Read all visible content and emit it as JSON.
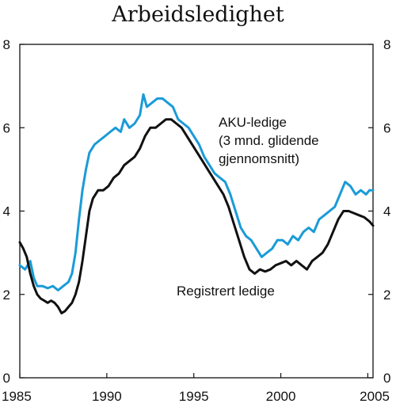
{
  "chart_data": {
    "type": "line",
    "title": "Arbeidsledighet",
    "xlim": [
      1985,
      2005.3
    ],
    "ylim": [
      0,
      8
    ],
    "x_ticks": [
      {
        "value": 1985,
        "label": "1985"
      },
      {
        "value": 1990,
        "label": "1990"
      },
      {
        "value": 1995,
        "label": "1995"
      },
      {
        "value": 2000,
        "label": "2000"
      },
      {
        "value": 2005,
        "label": "2005"
      }
    ],
    "y_ticks": [
      {
        "value": 0,
        "label": "0"
      },
      {
        "value": 2,
        "label": "2"
      },
      {
        "value": 4,
        "label": "4"
      },
      {
        "value": 6,
        "label": "6"
      },
      {
        "value": 8,
        "label": "8"
      }
    ],
    "grid": false,
    "annotations": [
      {
        "text": "AKU-ledige",
        "series": "AKU-ledige (3 mnd. glidende gjennomsnitt)"
      },
      {
        "text": "(3 mnd. glidende",
        "series": "AKU-ledige (3 mnd. glidende gjennomsnitt)"
      },
      {
        "text": "gjennomsnitt)",
        "series": "AKU-ledige (3 mnd. glidende gjennomsnitt)"
      },
      {
        "text": "Registrert ledige",
        "series": "Registrert ledige"
      }
    ],
    "series": [
      {
        "name": "AKU-ledige (3 mnd. glidende gjennomsnitt)",
        "color": "#1a9bd7",
        "x": [
          1985.0,
          1985.3,
          1985.6,
          1985.8,
          1986.0,
          1986.3,
          1986.6,
          1986.9,
          1987.2,
          1987.5,
          1987.8,
          1988.0,
          1988.2,
          1988.4,
          1988.6,
          1988.8,
          1989.0,
          1989.3,
          1989.6,
          1989.9,
          1990.2,
          1990.5,
          1990.8,
          1991.0,
          1991.3,
          1991.6,
          1991.9,
          1992.1,
          1992.3,
          1992.6,
          1992.9,
          1993.2,
          1993.5,
          1993.8,
          1994.1,
          1994.4,
          1994.7,
          1995.0,
          1995.3,
          1995.6,
          1995.9,
          1996.2,
          1996.5,
          1996.8,
          1997.1,
          1997.4,
          1997.7,
          1998.0,
          1998.3,
          1998.6,
          1998.9,
          1999.2,
          1999.5,
          1999.8,
          2000.1,
          2000.4,
          2000.7,
          2001.0,
          2001.3,
          2001.6,
          2001.9,
          2002.2,
          2002.5,
          2002.8,
          2003.1,
          2003.4,
          2003.7,
          2004.0,
          2004.3,
          2004.6,
          2004.9,
          2005.1,
          2005.3
        ],
        "y": [
          2.7,
          2.6,
          2.8,
          2.4,
          2.2,
          2.2,
          2.15,
          2.2,
          2.1,
          2.2,
          2.3,
          2.5,
          3.0,
          3.8,
          4.5,
          5.0,
          5.4,
          5.6,
          5.7,
          5.8,
          5.9,
          6.0,
          5.9,
          6.2,
          6.0,
          6.1,
          6.3,
          6.8,
          6.5,
          6.6,
          6.7,
          6.7,
          6.6,
          6.5,
          6.2,
          6.1,
          6.0,
          5.8,
          5.6,
          5.3,
          5.1,
          4.9,
          4.8,
          4.7,
          4.4,
          4.0,
          3.6,
          3.4,
          3.3,
          3.1,
          2.9,
          3.0,
          3.1,
          3.3,
          3.3,
          3.2,
          3.4,
          3.3,
          3.5,
          3.6,
          3.5,
          3.8,
          3.9,
          4.0,
          4.1,
          4.4,
          4.7,
          4.6,
          4.4,
          4.5,
          4.4,
          4.5,
          4.5
        ]
      },
      {
        "name": "Registrert ledige",
        "color": "#111111",
        "x": [
          1985.0,
          1985.2,
          1985.4,
          1985.6,
          1985.8,
          1986.0,
          1986.2,
          1986.4,
          1986.6,
          1986.8,
          1987.0,
          1987.2,
          1987.4,
          1987.6,
          1987.8,
          1988.0,
          1988.2,
          1988.4,
          1988.6,
          1988.8,
          1989.0,
          1989.2,
          1989.5,
          1989.8,
          1990.1,
          1990.4,
          1990.7,
          1991.0,
          1991.3,
          1991.6,
          1991.9,
          1992.2,
          1992.5,
          1992.8,
          1993.1,
          1993.4,
          1993.7,
          1994.0,
          1994.3,
          1994.6,
          1994.9,
          1995.2,
          1995.5,
          1995.8,
          1996.1,
          1996.4,
          1996.7,
          1997.0,
          1997.3,
          1997.6,
          1997.9,
          1998.2,
          1998.5,
          1998.8,
          1999.1,
          1999.4,
          1999.7,
          2000.0,
          2000.3,
          2000.6,
          2000.9,
          2001.2,
          2001.5,
          2001.8,
          2002.1,
          2002.4,
          2002.7,
          2003.0,
          2003.3,
          2003.6,
          2003.9,
          2004.2,
          2004.5,
          2004.8,
          2005.1,
          2005.3
        ],
        "y": [
          3.25,
          3.1,
          2.9,
          2.5,
          2.2,
          2.0,
          1.9,
          1.85,
          1.8,
          1.85,
          1.8,
          1.7,
          1.55,
          1.6,
          1.7,
          1.8,
          2.0,
          2.3,
          2.8,
          3.4,
          4.0,
          4.3,
          4.5,
          4.5,
          4.6,
          4.8,
          4.9,
          5.1,
          5.2,
          5.3,
          5.5,
          5.8,
          6.0,
          6.0,
          6.1,
          6.2,
          6.2,
          6.1,
          6.0,
          5.8,
          5.6,
          5.4,
          5.2,
          5.0,
          4.8,
          4.6,
          4.4,
          4.1,
          3.7,
          3.3,
          2.9,
          2.6,
          2.5,
          2.6,
          2.55,
          2.6,
          2.7,
          2.75,
          2.8,
          2.7,
          2.8,
          2.7,
          2.6,
          2.8,
          2.9,
          3.0,
          3.2,
          3.5,
          3.8,
          4.0,
          4.0,
          3.95,
          3.9,
          3.85,
          3.75,
          3.65
        ]
      }
    ]
  }
}
